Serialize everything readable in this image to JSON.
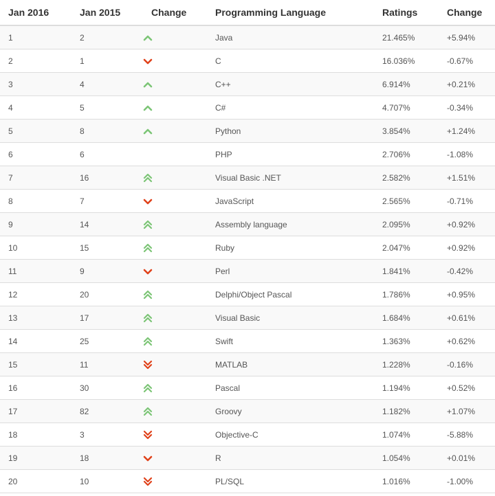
{
  "columns": [
    "Jan 2016",
    "Jan 2015",
    "Change",
    "Programming Language",
    "Ratings",
    "Change"
  ],
  "colors": {
    "up": "#7cc576",
    "down": "#e0421b"
  },
  "rows": [
    {
      "rank2016": "1",
      "rank2015": "2",
      "trend": "up-icon",
      "language": "Java",
      "rating": "21.465%",
      "change": "+5.94%"
    },
    {
      "rank2016": "2",
      "rank2015": "1",
      "trend": "down-icon",
      "language": "C",
      "rating": "16.036%",
      "change": "-0.67%"
    },
    {
      "rank2016": "3",
      "rank2015": "4",
      "trend": "up-icon",
      "language": "C++",
      "rating": "6.914%",
      "change": "+0.21%"
    },
    {
      "rank2016": "4",
      "rank2015": "5",
      "trend": "up-icon",
      "language": "C#",
      "rating": "4.707%",
      "change": "-0.34%"
    },
    {
      "rank2016": "5",
      "rank2015": "8",
      "trend": "up-icon",
      "language": "Python",
      "rating": "3.854%",
      "change": "+1.24%"
    },
    {
      "rank2016": "6",
      "rank2015": "6",
      "trend": "",
      "language": "PHP",
      "rating": "2.706%",
      "change": "-1.08%"
    },
    {
      "rank2016": "7",
      "rank2015": "16",
      "trend": "double-up-icon",
      "language": "Visual Basic .NET",
      "rating": "2.582%",
      "change": "+1.51%"
    },
    {
      "rank2016": "8",
      "rank2015": "7",
      "trend": "down-icon",
      "language": "JavaScript",
      "rating": "2.565%",
      "change": "-0.71%"
    },
    {
      "rank2016": "9",
      "rank2015": "14",
      "trend": "double-up-icon",
      "language": "Assembly language",
      "rating": "2.095%",
      "change": "+0.92%"
    },
    {
      "rank2016": "10",
      "rank2015": "15",
      "trend": "double-up-icon",
      "language": "Ruby",
      "rating": "2.047%",
      "change": "+0.92%"
    },
    {
      "rank2016": "11",
      "rank2015": "9",
      "trend": "down-icon",
      "language": "Perl",
      "rating": "1.841%",
      "change": "-0.42%"
    },
    {
      "rank2016": "12",
      "rank2015": "20",
      "trend": "double-up-icon",
      "language": "Delphi/Object Pascal",
      "rating": "1.786%",
      "change": "+0.95%"
    },
    {
      "rank2016": "13",
      "rank2015": "17",
      "trend": "double-up-icon",
      "language": "Visual Basic",
      "rating": "1.684%",
      "change": "+0.61%"
    },
    {
      "rank2016": "14",
      "rank2015": "25",
      "trend": "double-up-icon",
      "language": "Swift",
      "rating": "1.363%",
      "change": "+0.62%"
    },
    {
      "rank2016": "15",
      "rank2015": "11",
      "trend": "double-down-icon",
      "language": "MATLAB",
      "rating": "1.228%",
      "change": "-0.16%"
    },
    {
      "rank2016": "16",
      "rank2015": "30",
      "trend": "double-up-icon",
      "language": "Pascal",
      "rating": "1.194%",
      "change": "+0.52%"
    },
    {
      "rank2016": "17",
      "rank2015": "82",
      "trend": "double-up-icon",
      "language": "Groovy",
      "rating": "1.182%",
      "change": "+1.07%"
    },
    {
      "rank2016": "18",
      "rank2015": "3",
      "trend": "double-down-icon",
      "language": "Objective-C",
      "rating": "1.074%",
      "change": "-5.88%"
    },
    {
      "rank2016": "19",
      "rank2015": "18",
      "trend": "down-icon",
      "language": "R",
      "rating": "1.054%",
      "change": "+0.01%"
    },
    {
      "rank2016": "20",
      "rank2015": "10",
      "trend": "double-down-icon",
      "language": "PL/SQL",
      "rating": "1.016%",
      "change": "-1.00%"
    }
  ]
}
